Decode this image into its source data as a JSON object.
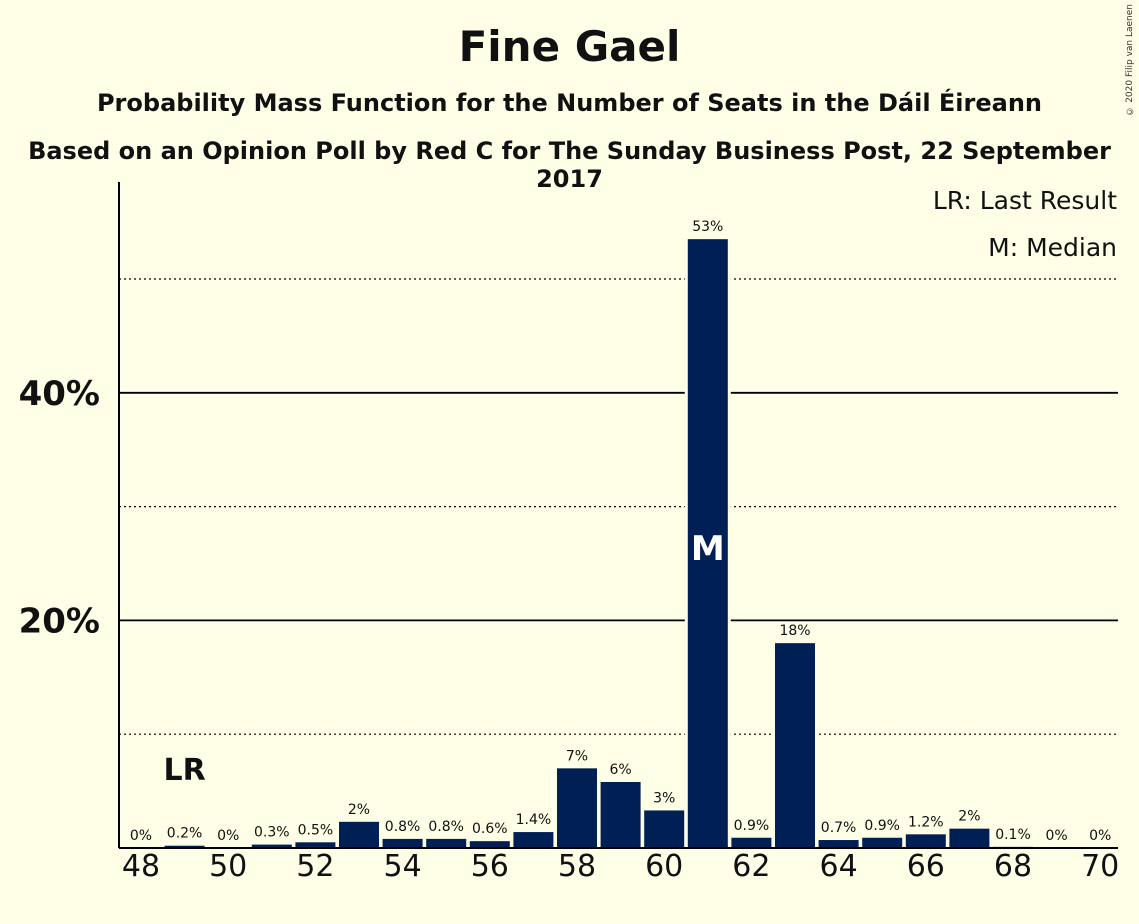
{
  "chart_data": {
    "type": "bar",
    "title": "Fine Gael",
    "subtitle": "Probability Mass Function for the Number of Seats in the Dáil Éireann",
    "subtitle2": "Based on an Opinion Poll by Red C for The Sunday Business Post, 22 September 2017",
    "copyright": "© 2020 Filip van Laenen",
    "x": [
      48,
      49,
      50,
      51,
      52,
      53,
      54,
      55,
      56,
      57,
      58,
      59,
      60,
      61,
      62,
      63,
      64,
      65,
      66,
      67,
      68,
      69,
      70
    ],
    "values": [
      0,
      0.2,
      0,
      0.3,
      0.5,
      2.3,
      0.8,
      0.8,
      0.6,
      1.4,
      7,
      5.8,
      3.3,
      53.5,
      0.9,
      18,
      0.7,
      0.9,
      1.2,
      1.7,
      0.1,
      0,
      0
    ],
    "labels": [
      "0%",
      "0.2%",
      "0%",
      "0.3%",
      "0.5%",
      "2%",
      "0.8%",
      "0.8%",
      "0.6%",
      "1.4%",
      "7%",
      "6%",
      "3%",
      "53%",
      "0.9%",
      "18%",
      "0.7%",
      "0.9%",
      "1.2%",
      "2%",
      "0.1%",
      "0%",
      "0%"
    ],
    "xticks": [
      48,
      50,
      52,
      54,
      56,
      58,
      60,
      62,
      64,
      66,
      68,
      70
    ],
    "yticks": [
      {
        "value": 20,
        "label": "20%"
      },
      {
        "value": 40,
        "label": "40%"
      }
    ],
    "minor_gridlines": [
      10,
      30,
      50
    ],
    "ylim": [
      0,
      58
    ],
    "last_result": {
      "seat": 49,
      "label": "LR"
    },
    "median": {
      "seat": 61,
      "label": "M"
    },
    "legend": [
      "LR: Last Result",
      "M: Median"
    ],
    "bar_color": "#001F54",
    "background": "#FFFEE6"
  }
}
